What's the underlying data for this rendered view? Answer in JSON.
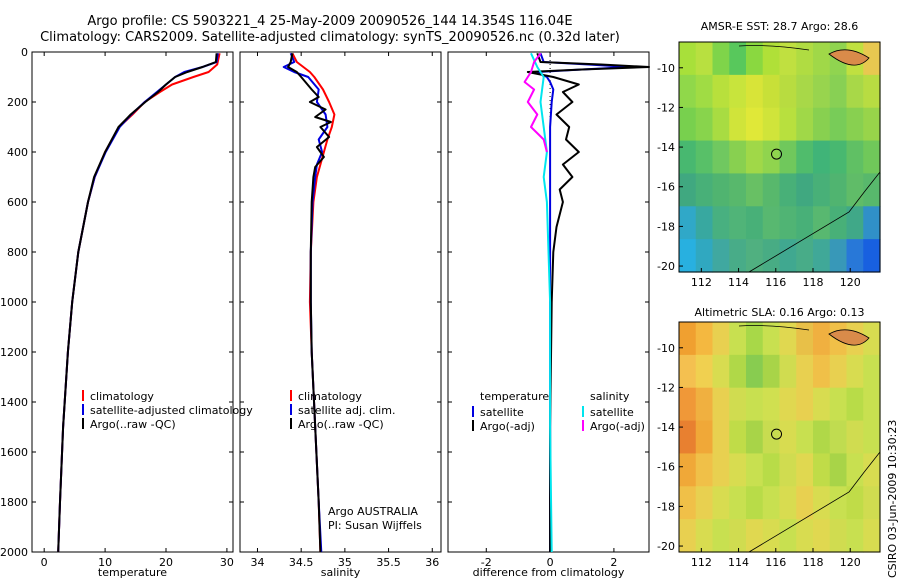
{
  "header": {
    "line1": "Argo profile: CS 5903221_4 25-May-2009 20090526_144 14.354S 116.04E",
    "line2": "Climatology: CARS2009. Satellite-adjusted climatology: synTS_20090526.nc (0.32d later)"
  },
  "credit": "CSIRO 03-Jun-2009 10:30:23",
  "colors": {
    "red": "#ff0000",
    "blue": "#0000e0",
    "black": "#000000",
    "cyan": "#00e5ee",
    "magenta": "#ff00ff"
  },
  "depth_axis": {
    "ylim": [
      0,
      2000
    ],
    "yticks": [
      0,
      200,
      400,
      600,
      800,
      1000,
      1200,
      1400,
      1600,
      1800,
      2000
    ]
  },
  "chart_data": [
    {
      "type": "line",
      "id": "temperature",
      "xlabel": "temperature",
      "xlim": [
        -2,
        31
      ],
      "xticks": [
        0,
        10,
        20,
        30
      ],
      "legend": [
        {
          "label": "climatology",
          "color": "red"
        },
        {
          "label": "satellite-adjusted climatology",
          "color": "blue"
        },
        {
          "label": "Argo(..raw -QC)",
          "color": "black"
        }
      ],
      "series": [
        {
          "name": "climatology",
          "color": "red",
          "depth": [
            5,
            50,
            80,
            100,
            130,
            160,
            200,
            250,
            300,
            400,
            500,
            600,
            800,
            1000,
            1200,
            1500,
            1800,
            2000
          ],
          "values": [
            28.8,
            28.4,
            27.0,
            24.5,
            21.0,
            19.0,
            16.5,
            14.5,
            12.3,
            10.0,
            8.3,
            7.2,
            5.6,
            4.6,
            3.9,
            3.1,
            2.6,
            2.3
          ]
        },
        {
          "name": "satellite-adjusted climatology",
          "color": "blue",
          "depth": [
            5,
            40,
            60,
            80,
            100,
            130,
            160,
            200,
            250,
            300,
            400,
            500,
            600,
            800,
            1000,
            1200,
            1500,
            1800,
            2000
          ],
          "values": [
            28.5,
            28.3,
            26.0,
            23.0,
            21.5,
            20.0,
            18.5,
            16.5,
            14.3,
            12.4,
            10.1,
            8.3,
            7.2,
            5.6,
            4.6,
            3.9,
            3.1,
            2.6,
            2.3
          ]
        },
        {
          "name": "Argo(..raw -QC)",
          "color": "black",
          "depth": [
            5,
            40,
            60,
            80,
            100,
            130,
            160,
            200,
            250,
            300,
            400,
            500,
            600,
            800,
            1000,
            1200,
            1500,
            1800,
            2000
          ],
          "values": [
            28.3,
            28.2,
            26.0,
            23.5,
            21.5,
            20.0,
            18.7,
            16.6,
            14.2,
            12.2,
            10.0,
            8.2,
            7.2,
            5.6,
            4.6,
            3.9,
            3.1,
            2.6,
            2.3
          ]
        }
      ]
    },
    {
      "type": "line",
      "id": "salinity",
      "xlabel": "salinity",
      "xlim": [
        33.8,
        36.1
      ],
      "xticks": [
        34,
        34.5,
        35,
        35.5,
        36
      ],
      "legend": [
        {
          "label": "climatology",
          "color": "red"
        },
        {
          "label": "satellite adj. clim.",
          "color": "blue"
        },
        {
          "label": "Argo(..raw -QC)",
          "color": "black"
        }
      ],
      "annotation": [
        "Argo AUSTRALIA",
        "PI: Susan Wijffels"
      ],
      "series": [
        {
          "name": "climatology",
          "color": "red",
          "depth": [
            5,
            40,
            80,
            100,
            150,
            200,
            250,
            300,
            350,
            400,
            450,
            500,
            600,
            800,
            1000,
            1200,
            1500,
            1800,
            2000
          ],
          "values": [
            34.4,
            34.45,
            34.6,
            34.65,
            34.75,
            34.82,
            34.88,
            34.85,
            34.8,
            34.76,
            34.72,
            34.68,
            34.64,
            34.61,
            34.6,
            34.62,
            34.66,
            34.7,
            34.72
          ]
        },
        {
          "name": "satellite adj. clim.",
          "color": "blue",
          "depth": [
            5,
            40,
            60,
            80,
            100,
            150,
            200,
            250,
            300,
            350,
            400,
            450,
            500,
            600,
            800,
            1000,
            1200,
            1500,
            1800,
            2000
          ],
          "values": [
            34.38,
            34.42,
            34.3,
            34.42,
            34.58,
            34.7,
            34.68,
            34.78,
            34.8,
            34.7,
            34.74,
            34.68,
            34.66,
            34.63,
            34.61,
            34.61,
            34.62,
            34.66,
            34.7,
            34.73
          ]
        },
        {
          "name": "Argo(..raw -QC)",
          "color": "black",
          "depth": [
            5,
            40,
            60,
            80,
            100,
            150,
            180,
            200,
            230,
            260,
            280,
            300,
            340,
            380,
            420,
            460,
            500,
            600,
            800,
            1000,
            1200,
            1500,
            1800,
            2000
          ],
          "values": [
            34.4,
            34.38,
            34.35,
            34.45,
            34.5,
            34.62,
            34.7,
            34.6,
            34.78,
            34.66,
            34.84,
            34.72,
            34.82,
            34.68,
            34.76,
            34.66,
            34.64,
            34.62,
            34.61,
            34.61,
            34.62,
            34.66,
            34.7,
            34.72
          ]
        }
      ]
    },
    {
      "type": "line",
      "id": "difference",
      "xlabel": "difference from climatology",
      "xlim": [
        -3.2,
        3.1
      ],
      "xticks": [
        -2,
        0,
        2
      ],
      "legend_columns": [
        {
          "header": "temperature",
          "items": [
            {
              "label": "satellite",
              "color": "blue"
            },
            {
              "label": "Argo(-adj)",
              "color": "black"
            }
          ]
        },
        {
          "header": "salinity",
          "items": [
            {
              "label": "satellite",
              "color": "cyan"
            },
            {
              "label": "Argo(-adj)",
              "color": "magenta"
            }
          ]
        }
      ],
      "series": [
        {
          "name": "temperature satellite",
          "color": "blue",
          "depth": [
            5,
            40,
            50,
            60,
            70,
            80,
            100,
            120,
            150,
            200,
            300,
            400,
            600,
            800,
            1000,
            1500,
            2000
          ],
          "values": [
            -0.3,
            -0.2,
            1.2,
            2.5,
            1.0,
            -0.4,
            -0.1,
            0.0,
            0.1,
            0.05,
            0.0,
            0.0,
            0.0,
            0.0,
            0.0,
            0.0,
            0.0
          ]
        },
        {
          "name": "temperature Argo(-adj)",
          "color": "black",
          "depth": [
            5,
            40,
            50,
            60,
            70,
            80,
            100,
            130,
            160,
            200,
            250,
            300,
            350,
            400,
            450,
            500,
            550,
            600,
            700,
            800,
            1000,
            1500,
            2000
          ],
          "values": [
            -0.4,
            -0.3,
            1.6,
            3.1,
            1.0,
            -0.7,
            0.1,
            0.9,
            0.4,
            0.7,
            0.2,
            0.6,
            0.5,
            0.9,
            0.4,
            0.7,
            0.3,
            0.4,
            0.2,
            0.1,
            0.05,
            0.0,
            0.0
          ]
        },
        {
          "name": "salinity satellite",
          "color": "cyan",
          "depth": [
            5,
            60,
            100,
            200,
            300,
            400,
            500,
            600,
            800,
            1000,
            1500,
            2000
          ],
          "values": [
            -0.6,
            -0.4,
            -0.2,
            -0.3,
            -0.2,
            -0.1,
            -0.2,
            -0.1,
            -0.05,
            0.0,
            0.0,
            0.05
          ]
        },
        {
          "name": "salinity Argo(-adj)",
          "color": "magenta",
          "depth": [
            5,
            40,
            80,
            120,
            150,
            200,
            250,
            300,
            350,
            400
          ],
          "values": [
            -0.3,
            -0.5,
            -0.6,
            -0.8,
            -0.5,
            -0.7,
            -0.4,
            -0.6,
            -0.2,
            -0.1
          ]
        }
      ]
    },
    {
      "type": "heatmap",
      "id": "sst_map",
      "title": "AMSR-E SST: 28.7 Argo: 28.6",
      "xlim": [
        110.8,
        121.6
      ],
      "ylim": [
        -20.3,
        -8.7
      ],
      "xticks": [
        112,
        114,
        116,
        118,
        120
      ],
      "yticks": [
        -10,
        -12,
        -14,
        -16,
        -18,
        -20
      ],
      "argo_position": [
        116.04,
        -14.354
      ],
      "cells": [
        [
          "#a8e03a",
          "#b8e040",
          "#7fd44a",
          "#58c85c",
          "#8ad840",
          "#b0e038",
          "#c0e040",
          "#b0dc42",
          "#a0d848",
          "#90d450",
          "#c0e040",
          "#e8c850"
        ],
        [
          "#90d84a",
          "#a0dc44",
          "#b8e03c",
          "#c8e43c",
          "#d8e438",
          "#c8e038",
          "#b8dc40",
          "#a8d848",
          "#98d44e",
          "#88d054",
          "#a8d848",
          "#b8dc42"
        ],
        [
          "#78d04e",
          "#88d44c",
          "#a8dc42",
          "#d0e43a",
          "#e0e838",
          "#d0e43a",
          "#b8e03e",
          "#a0d848",
          "#88d050",
          "#78cc58",
          "#88d050",
          "#98d44a"
        ],
        [
          "#48b870",
          "#58c068",
          "#70c860",
          "#88d050",
          "#a0d848",
          "#90d44e",
          "#70c85c",
          "#50bc6c",
          "#40b478",
          "#48b870",
          "#60c064",
          "#70c85a"
        ],
        [
          "#40a880",
          "#48b078",
          "#50b470",
          "#58b86c",
          "#68c064",
          "#58b86c",
          "#48b078",
          "#40a880",
          "#48b078",
          "#50b470",
          "#60bc68",
          "#58b86c"
        ],
        [
          "#30a8c8",
          "#38a8a0",
          "#48b080",
          "#50b478",
          "#48b078",
          "#58b870",
          "#50b474",
          "#48b078",
          "#58b870",
          "#48b078",
          "#40a888",
          "#3090c8"
        ],
        [
          "#28b0e0",
          "#30a8c0",
          "#40a8a0",
          "#48ac88",
          "#50b080",
          "#48ac84",
          "#40a890",
          "#48ac88",
          "#40a898",
          "#3898b8",
          "#2878d8",
          "#1860e0"
        ]
      ]
    },
    {
      "type": "heatmap",
      "id": "sla_map",
      "title": "Altimetric SLA: 0.16 Argo: 0.13",
      "xlim": [
        110.8,
        121.6
      ],
      "ylim": [
        -20.3,
        -8.7
      ],
      "xticks": [
        112,
        114,
        116,
        118,
        120
      ],
      "yticks": [
        -10,
        -12,
        -14,
        -16,
        -18,
        -20
      ],
      "argo_position": [
        116.04,
        -14.354
      ],
      "cells": [
        [
          "#f0a030",
          "#f4b840",
          "#e8d050",
          "#c8e050",
          "#a8d848",
          "#c8e050",
          "#e0d850",
          "#e8c048",
          "#f0b040",
          "#f0c048",
          "#e8d050",
          "#d8dc50"
        ],
        [
          "#f4c050",
          "#f0d050",
          "#d8dc50",
          "#b0d848",
          "#88cc50",
          "#a8d448",
          "#d0dc50",
          "#e8d050",
          "#f0c048",
          "#e8d050",
          "#d8dc50",
          "#c8e050"
        ],
        [
          "#f09838",
          "#f0b040",
          "#e8d050",
          "#d0dc50",
          "#c8e050",
          "#d0e050",
          "#e0d850",
          "#e8d050",
          "#d8dc50",
          "#c8e050",
          "#b8dc48",
          "#c8e050"
        ],
        [
          "#e88030",
          "#f0a838",
          "#e8d050",
          "#c0dc48",
          "#a8d448",
          "#c8dc50",
          "#d8dc50",
          "#c8e050",
          "#b0d848",
          "#c0dc50",
          "#d0dc50",
          "#c8e050"
        ],
        [
          "#f0a838",
          "#f0c048",
          "#e8d050",
          "#d8dc50",
          "#c8e050",
          "#b8dc48",
          "#d0dc50",
          "#e0d850",
          "#c0dc48",
          "#a8d448",
          "#c8e050",
          "#d8dc50"
        ],
        [
          "#f0c048",
          "#e8d050",
          "#d8dc50",
          "#c8e050",
          "#b8dc48",
          "#c8e050",
          "#d8dc50",
          "#e8d050",
          "#d8dc50",
          "#c8e050",
          "#c0dc48",
          "#d0dc50"
        ],
        [
          "#e8d050",
          "#d8dc50",
          "#c8e050",
          "#d0dc50",
          "#e0d850",
          "#d8dc50",
          "#c8e050",
          "#d8dc50",
          "#e0d850",
          "#d0dc50",
          "#c8e050",
          "#d8dc50"
        ]
      ]
    }
  ]
}
